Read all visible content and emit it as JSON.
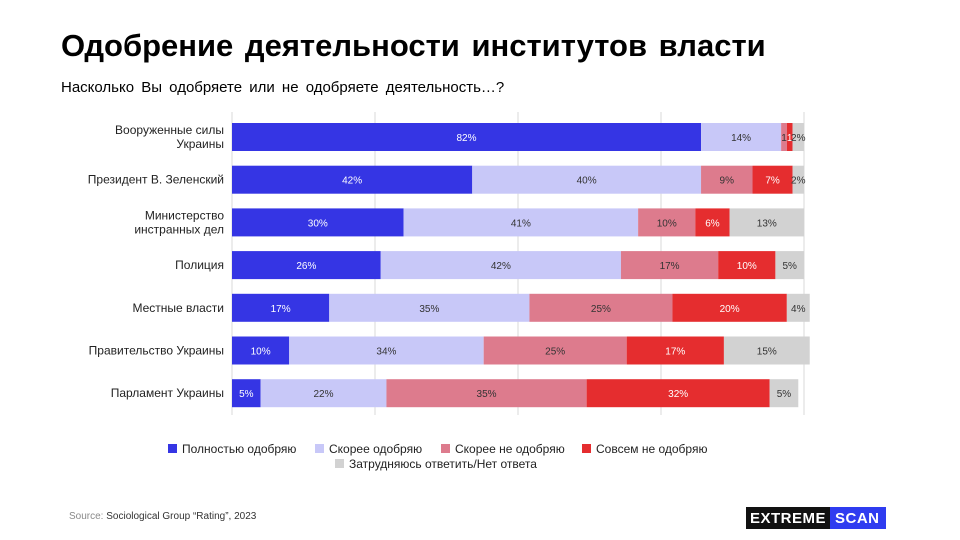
{
  "title": "Одобрение деятельности институтов власти",
  "subtitle": "Насколько  Вы одобряете  или не одобряете  деятельность…?",
  "footer": {
    "source_label": "Source:",
    "source_text": "Sociological Group “Rating”, 2023"
  },
  "logo": {
    "part1": "EXTREME",
    "part2": "SCAN"
  },
  "chart_data": {
    "type": "bar",
    "orientation": "horizontal",
    "stacked": true,
    "xlim": [
      0,
      100
    ],
    "grid": true,
    "legend_position": "bottom",
    "categories": [
      [
        "Вооруженные силы",
        "Украины"
      ],
      [
        "Президент В. Зеленский"
      ],
      [
        "Министерство",
        "инстранных дел"
      ],
      [
        "Полиция"
      ],
      [
        "Местные власти"
      ],
      [
        "Правительство Украины"
      ],
      [
        "Парламент Украины"
      ]
    ],
    "series": [
      {
        "name": "Полностью одобряю",
        "color": "#3535e4",
        "label_color": "#ffffff",
        "values": [
          82,
          42,
          30,
          26,
          17,
          10,
          5
        ]
      },
      {
        "name": "Скорее одобряю",
        "color": "#c8c8f8",
        "label_color": "#333333",
        "values": [
          14,
          40,
          41,
          42,
          35,
          34,
          22
        ]
      },
      {
        "name": "Скорее не одобряю",
        "color": "#dd7b8d",
        "label_color": "#333333",
        "values": [
          1,
          9,
          10,
          17,
          25,
          25,
          35
        ]
      },
      {
        "name": "Совсем не одобряю",
        "color": "#e52d2f",
        "label_color": "#ffffff",
        "values": [
          1,
          7,
          6,
          10,
          20,
          17,
          32
        ]
      },
      {
        "name": "Затрудняюсь ответить/Нет ответа",
        "color": "#d2d2d2",
        "label_color": "#333333",
        "values": [
          2,
          2,
          13,
          5,
          4,
          15,
          5
        ]
      }
    ],
    "value_labels": [
      [
        "82%",
        "14%",
        "1",
        "1",
        "2%"
      ],
      [
        "42%",
        "40%",
        "9%",
        "7%",
        "2%"
      ],
      [
        "30%",
        "41%",
        "10%",
        "6%",
        "13%"
      ],
      [
        "26%",
        "42%",
        "17%",
        "10%",
        "5%"
      ],
      [
        "17%",
        "35%",
        "25%",
        "20%",
        "4%"
      ],
      [
        "10%",
        "34%",
        "25%",
        "17%",
        "15%"
      ],
      [
        "5%",
        "22%",
        "35%",
        "32%",
        "5%"
      ]
    ]
  }
}
